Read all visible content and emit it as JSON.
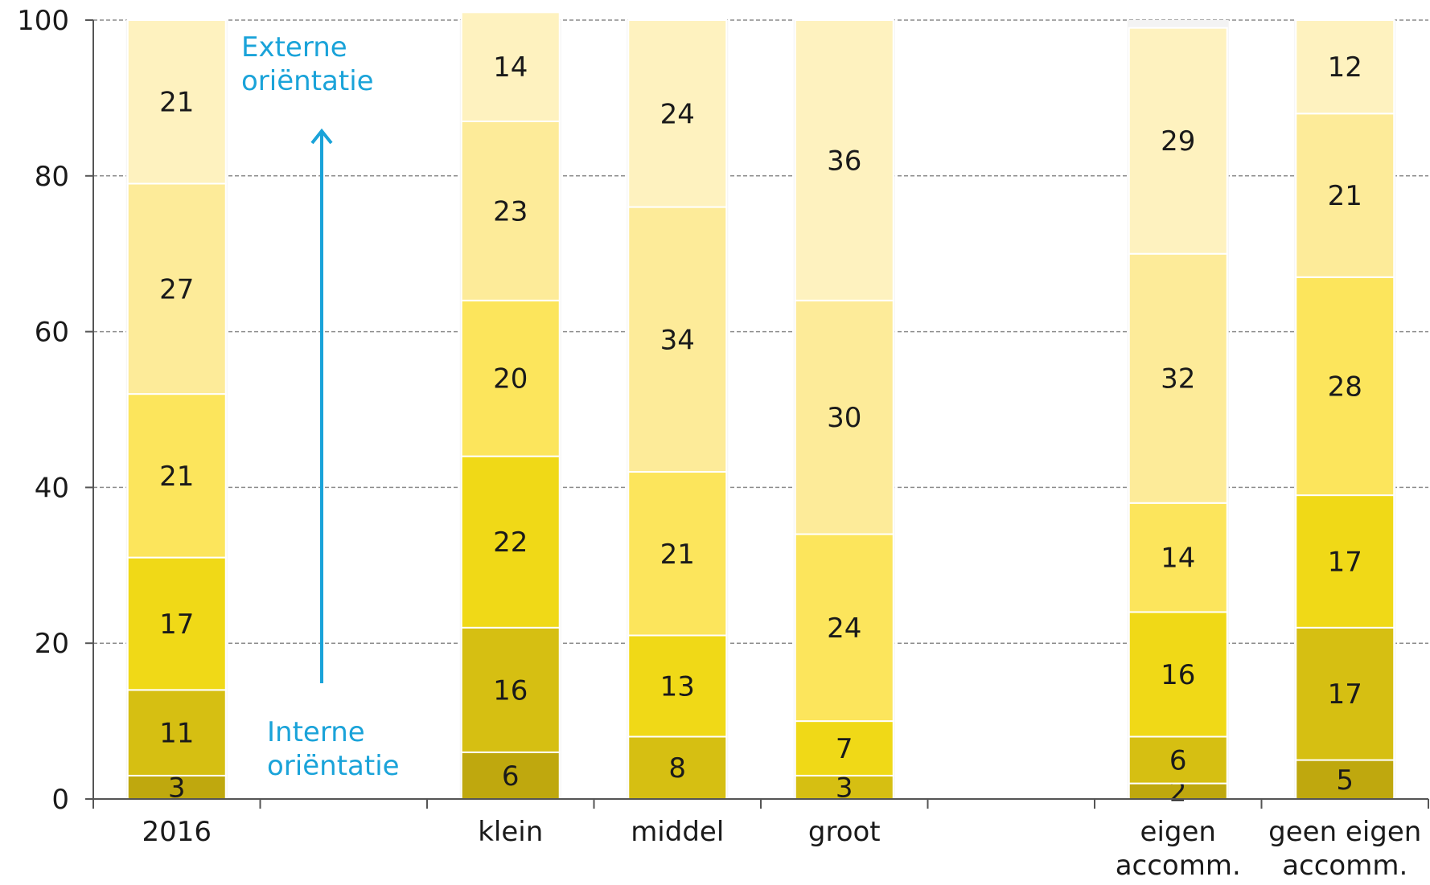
{
  "chart_data": {
    "type": "bar",
    "stacked": true,
    "categories": [
      [
        "2016"
      ],
      [],
      [
        "klein"
      ],
      [
        "middel"
      ],
      [
        "groot"
      ],
      [],
      [
        "eigen",
        "accomm."
      ],
      [
        "geen eigen",
        "accomm."
      ]
    ],
    "stacks": [
      [
        3,
        11,
        17,
        21,
        27,
        21
      ],
      null,
      [
        6,
        16,
        22,
        20,
        23,
        14
      ],
      [
        0,
        8,
        13,
        21,
        34,
        24
      ],
      [
        0,
        3,
        7,
        24,
        30,
        36
      ],
      null,
      [
        2,
        6,
        16,
        14,
        32,
        29
      ],
      [
        5,
        17,
        17,
        28,
        21,
        12
      ]
    ],
    "segment_colors": [
      "#bfa80e",
      "#d6bf12",
      "#f0d917",
      "#fce55c",
      "#fdeb99",
      "#fef2bf"
    ],
    "ylim": [
      0,
      100
    ],
    "yticks": [
      "0",
      "20",
      "40",
      "60",
      "80",
      "100"
    ],
    "grid": true,
    "annotations": {
      "top": [
        "Externe",
        "oriëntatie"
      ],
      "bottom": [
        "Interne",
        "oriëntatie"
      ],
      "arrow_color": "#1aa3d9"
    }
  }
}
